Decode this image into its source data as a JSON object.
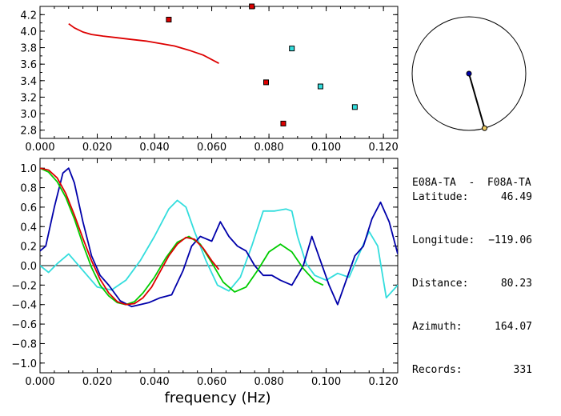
{
  "chart_data": [
    {
      "type": "scatter",
      "xlim": [
        0.0,
        0.125
      ],
      "ylim": [
        2.7,
        4.3
      ],
      "x_ticks": [
        "0.000",
        "0.020",
        "0.040",
        "0.060",
        "0.080",
        "0.100",
        "0.120"
      ],
      "y_ticks": [
        "2.8",
        "3.0",
        "3.2",
        "3.4",
        "3.6",
        "3.8",
        "4.0",
        "4.2"
      ],
      "x_tick_values": [
        0,
        0.02,
        0.04,
        0.06,
        0.08,
        0.1,
        0.12
      ],
      "y_tick_values": [
        2.8,
        3.0,
        3.2,
        3.4,
        3.6,
        3.8,
        4.0,
        4.2
      ],
      "series": [
        {
          "kind": "line",
          "color": "#dd0000",
          "x": [
            0.01,
            0.012,
            0.015,
            0.018,
            0.022,
            0.027,
            0.032,
            0.037,
            0.042,
            0.047,
            0.052,
            0.057,
            0.0625
          ],
          "y": [
            4.09,
            4.04,
            3.99,
            3.96,
            3.94,
            3.92,
            3.9,
            3.88,
            3.85,
            3.82,
            3.77,
            3.71,
            3.61
          ]
        },
        {
          "kind": "points",
          "color": "#dd0000",
          "x": [
            0.045,
            0.074,
            0.079,
            0.085
          ],
          "y": [
            4.14,
            4.3,
            3.38,
            2.88
          ]
        },
        {
          "kind": "points",
          "color": "#33dddd",
          "x": [
            0.088,
            0.098,
            0.11
          ],
          "y": [
            3.79,
            3.33,
            3.08
          ]
        }
      ]
    },
    {
      "type": "line",
      "xlabel": "frequency (Hz)",
      "xlim": [
        0.0,
        0.125
      ],
      "ylim": [
        -1.1,
        1.1
      ],
      "x_ticks": [
        "0.000",
        "0.020",
        "0.040",
        "0.060",
        "0.080",
        "0.100",
        "0.120"
      ],
      "y_ticks": [
        "1.0",
        "0.8",
        "0.6",
        "0.4",
        "0.2",
        "0.0",
        "−0.2",
        "−0.4",
        "−0.6",
        "−0.8",
        "−1.0"
      ],
      "x_tick_values": [
        0,
        0.02,
        0.04,
        0.06,
        0.08,
        0.1,
        0.12
      ],
      "y_tick_values": [
        1.0,
        0.8,
        0.6,
        0.4,
        0.2,
        0.0,
        -0.2,
        -0.4,
        -0.6,
        -0.8,
        -1.0
      ],
      "zero_line": 0.0,
      "series": [
        {
          "color": "#33dddd",
          "x": [
            0,
            0.003,
            0.006,
            0.01,
            0.015,
            0.02,
            0.025,
            0.03,
            0.035,
            0.04,
            0.045,
            0.048,
            0.051,
            0.054,
            0.058,
            0.062,
            0.066,
            0.07,
            0.074,
            0.078,
            0.082,
            0.086,
            0.088,
            0.09,
            0.093,
            0.096,
            0.1,
            0.104,
            0.108,
            0.112,
            0.115,
            0.118,
            0.121,
            0.125
          ],
          "y": [
            0.0,
            -0.07,
            0.02,
            0.12,
            -0.05,
            -0.22,
            -0.25,
            -0.15,
            0.05,
            0.3,
            0.58,
            0.67,
            0.6,
            0.35,
            0.05,
            -0.2,
            -0.26,
            -0.12,
            0.2,
            0.56,
            0.56,
            0.58,
            0.56,
            0.3,
            0.02,
            -0.1,
            -0.15,
            -0.08,
            -0.12,
            0.15,
            0.35,
            0.2,
            -0.33,
            -0.2
          ]
        },
        {
          "color": "#0000aa",
          "x": [
            0,
            0.002,
            0.005,
            0.008,
            0.01,
            0.012,
            0.015,
            0.018,
            0.021,
            0.024,
            0.028,
            0.032,
            0.035,
            0.038,
            0.042,
            0.046,
            0.05,
            0.053,
            0.056,
            0.06,
            0.063,
            0.066,
            0.069,
            0.072,
            0.075,
            0.078,
            0.081,
            0.084,
            0.088,
            0.092,
            0.095,
            0.098,
            0.101,
            0.104,
            0.107,
            0.11,
            0.113,
            0.116,
            0.119,
            0.122,
            0.125
          ],
          "y": [
            0.15,
            0.2,
            0.6,
            0.95,
            1.0,
            0.85,
            0.45,
            0.1,
            -0.1,
            -0.2,
            -0.36,
            -0.42,
            -0.4,
            -0.38,
            -0.33,
            -0.3,
            -0.05,
            0.2,
            0.3,
            0.25,
            0.45,
            0.3,
            0.2,
            0.15,
            0.0,
            -0.1,
            -0.1,
            -0.15,
            -0.2,
            0.0,
            0.3,
            0.05,
            -0.2,
            -0.4,
            -0.15,
            0.1,
            0.2,
            0.48,
            0.65,
            0.45,
            0.12
          ]
        },
        {
          "color": "#00cc00",
          "x": [
            0,
            0.003,
            0.006,
            0.009,
            0.012,
            0.015,
            0.018,
            0.021,
            0.024,
            0.027,
            0.03,
            0.033,
            0.036,
            0.04,
            0.044,
            0.048,
            0.052,
            0.056,
            0.06,
            0.064,
            0.068,
            0.072,
            0.076,
            0.08,
            0.084,
            0.088,
            0.092,
            0.096,
            0.099
          ],
          "y": [
            1.0,
            0.96,
            0.86,
            0.7,
            0.48,
            0.22,
            -0.02,
            -0.2,
            -0.31,
            -0.38,
            -0.4,
            -0.37,
            -0.28,
            -0.12,
            0.08,
            0.24,
            0.3,
            0.22,
            0.03,
            -0.17,
            -0.27,
            -0.22,
            -0.05,
            0.14,
            0.22,
            0.14,
            -0.03,
            -0.16,
            -0.2
          ]
        },
        {
          "color": "#dd0000",
          "x": [
            0,
            0.003,
            0.006,
            0.009,
            0.012,
            0.015,
            0.018,
            0.021,
            0.024,
            0.027,
            0.03,
            0.033,
            0.036,
            0.039,
            0.042,
            0.045,
            0.048,
            0.051,
            0.054,
            0.057,
            0.06,
            0.0625
          ],
          "y": [
            1.0,
            0.98,
            0.9,
            0.74,
            0.52,
            0.28,
            0.05,
            -0.14,
            -0.28,
            -0.37,
            -0.4,
            -0.39,
            -0.33,
            -0.22,
            -0.06,
            0.1,
            0.22,
            0.29,
            0.27,
            0.18,
            0.05,
            -0.04
          ]
        }
      ]
    }
  ],
  "polar_inset": {
    "azimuth_deg": 164.07,
    "distance_fraction": 1.0,
    "center_color": "#0000aa",
    "end_color": "#eecc66"
  },
  "station_info": {
    "title": "E08A-TA  -  F08A-TA",
    "rows": [
      {
        "label": "Latitude:",
        "value": "46.49"
      },
      {
        "label": "Longitude:",
        "value": "−119.06"
      },
      {
        "label": "Distance:",
        "value": "80.23"
      },
      {
        "label": "Azimuth:",
        "value": "164.07"
      },
      {
        "label": "Records:",
        "value": "331"
      }
    ]
  }
}
